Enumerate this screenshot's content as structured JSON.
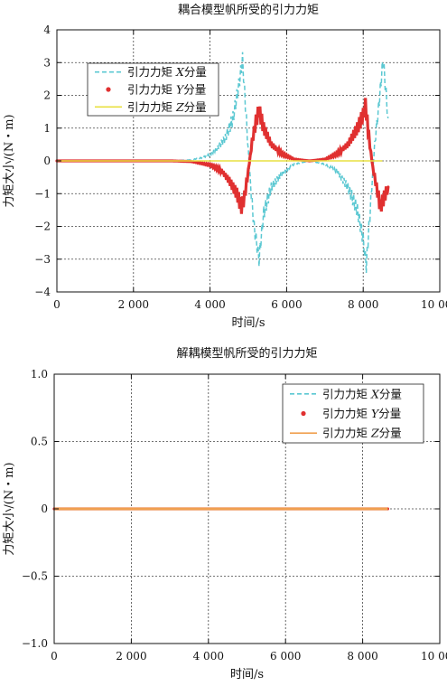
{
  "chart_data": [
    {
      "type": "line",
      "title": "耦合模型帆所受的引力力矩",
      "xlabel": "时间/s",
      "ylabel": "力矩大小/(N・m)",
      "xlim": [
        0,
        10000
      ],
      "ylim": [
        -4,
        4
      ],
      "xticks": [
        0,
        2000,
        4000,
        6000,
        8000,
        10000
      ],
      "xtick_labels": [
        "0",
        "2 000",
        "4 000",
        "6 000",
        "8 000",
        "10 000"
      ],
      "yticks": [
        -4,
        -3,
        -2,
        -1,
        0,
        1,
        2,
        3,
        4
      ],
      "ytick_labels": [
        "−4",
        "−3",
        "−2",
        "−1",
        "0",
        "1",
        "2",
        "3",
        "4"
      ],
      "grid": true,
      "legend_position": "top-left",
      "series": [
        {
          "name_parts": [
            "引力力矩 ",
            "X",
            "分量"
          ],
          "style": "dashed",
          "color": "#5bc8d2",
          "points": [
            [
              0,
              0
            ],
            [
              3000,
              0
            ],
            [
              3500,
              0.03
            ],
            [
              3800,
              0.1
            ],
            [
              4000,
              0.2
            ],
            [
              4200,
              0.4
            ],
            [
              4400,
              0.7
            ],
            [
              4600,
              1.3
            ],
            [
              4750,
              2.3
            ],
            [
              4850,
              3.1
            ],
            [
              4950,
              1.2
            ],
            [
              5050,
              -0.6
            ],
            [
              5150,
              -2.0
            ],
            [
              5280,
              -3.0
            ],
            [
              5400,
              -1.6
            ],
            [
              5600,
              -0.8
            ],
            [
              5900,
              -0.35
            ],
            [
              6200,
              -0.1
            ],
            [
              6600,
              0
            ],
            [
              7000,
              -0.1
            ],
            [
              7300,
              -0.3
            ],
            [
              7600,
              -0.8
            ],
            [
              7850,
              -1.5
            ],
            [
              8000,
              -2.4
            ],
            [
              8080,
              -3.2
            ],
            [
              8200,
              -1.2
            ],
            [
              8300,
              0.5
            ],
            [
              8400,
              1.6
            ],
            [
              8520,
              3.1
            ],
            [
              8650,
              1.3
            ]
          ]
        },
        {
          "name_parts": [
            "引力力矩 ",
            "Y",
            "分量"
          ],
          "style": "dotted",
          "color": "#e03030",
          "points": [
            [
              0,
              0
            ],
            [
              3000,
              0
            ],
            [
              3500,
              -0.02
            ],
            [
              3800,
              -0.08
            ],
            [
              4000,
              -0.12
            ],
            [
              4300,
              -0.3
            ],
            [
              4500,
              -0.6
            ],
            [
              4700,
              -1.0
            ],
            [
              4820,
              -1.4
            ],
            [
              4900,
              -1.1
            ],
            [
              5000,
              -0.3
            ],
            [
              5100,
              0.6
            ],
            [
              5200,
              1.2
            ],
            [
              5280,
              1.55
            ],
            [
              5400,
              1.0
            ],
            [
              5600,
              0.5
            ],
            [
              5900,
              0.2
            ],
            [
              6200,
              0.05
            ],
            [
              6600,
              0
            ],
            [
              7000,
              0.05
            ],
            [
              7300,
              0.2
            ],
            [
              7600,
              0.5
            ],
            [
              7850,
              1.0
            ],
            [
              8000,
              1.4
            ],
            [
              8060,
              1.7
            ],
            [
              8150,
              0.7
            ],
            [
              8250,
              -0.2
            ],
            [
              8350,
              -0.8
            ],
            [
              8450,
              -1.4
            ],
            [
              8550,
              -1.1
            ],
            [
              8650,
              -0.8
            ]
          ]
        },
        {
          "name_parts": [
            "引力力矩 ",
            "Z",
            "分量"
          ],
          "style": "solid",
          "color": "#e8e040",
          "points": [
            [
              0,
              0
            ],
            [
              8500,
              0
            ]
          ]
        }
      ]
    },
    {
      "type": "line",
      "title": "解耦模型帆所受的引力力矩",
      "xlabel": "时间/s",
      "ylabel": "力矩大小/(N・m)",
      "xlim": [
        0,
        10000
      ],
      "ylim": [
        -1,
        1
      ],
      "xticks": [
        0,
        2000,
        4000,
        6000,
        8000,
        10000
      ],
      "xtick_labels": [
        "0",
        "2 000",
        "4 000",
        "6 000",
        "8 000",
        "10 000"
      ],
      "yticks": [
        -1,
        -0.5,
        0,
        0.5,
        1
      ],
      "ytick_labels": [
        "−1.0",
        "−0.5",
        "0",
        "0.5",
        "1.0"
      ],
      "grid": true,
      "legend_position": "top-right",
      "series": [
        {
          "name_parts": [
            "引力力矩 ",
            "X",
            "分量"
          ],
          "style": "dashed",
          "color": "#5bc8d2",
          "points": [
            [
              0,
              0
            ],
            [
              8650,
              0
            ]
          ]
        },
        {
          "name_parts": [
            "引力力矩 ",
            "Y",
            "分量"
          ],
          "style": "dotted",
          "color": "#e03030",
          "points": [
            [
              0,
              0
            ],
            [
              8650,
              0
            ]
          ]
        },
        {
          "name_parts": [
            "引力力矩 ",
            "Z",
            "分量"
          ],
          "style": "solid",
          "color": "#f0a050",
          "points": [
            [
              0,
              0
            ],
            [
              8650,
              0
            ]
          ]
        }
      ]
    }
  ]
}
